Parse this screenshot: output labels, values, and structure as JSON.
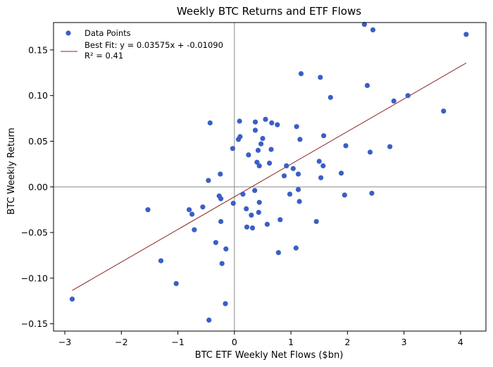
{
  "chart_data": {
    "type": "scatter",
    "title": "Weekly BTC Returns and ETF Flows",
    "xlabel": "BTC ETF Weekly Net Flows ($bn)",
    "ylabel": "BTC Weekly Return",
    "xlim": [
      -3.2,
      4.45
    ],
    "ylim": [
      -0.158,
      0.18
    ],
    "xticks": [
      -3,
      -2,
      -1,
      0,
      1,
      2,
      3,
      4
    ],
    "yticks": [
      -0.15,
      -0.1,
      -0.05,
      0.0,
      0.05,
      0.1,
      0.15
    ],
    "ytick_labels": [
      "−0.15",
      "−0.10",
      "−0.05",
      "0.00",
      "0.05",
      "0.10",
      "0.15"
    ],
    "xtick_labels": [
      "−3",
      "−2",
      "−1",
      "0",
      "1",
      "2",
      "3",
      "4"
    ],
    "grid": false,
    "reference_lines": {
      "x": 0,
      "y": 0
    },
    "legend_position": "top-left",
    "series": [
      {
        "name": "Data Points",
        "kind": "scatter",
        "color": "#3a5fc4",
        "points": [
          [
            -2.87,
            -0.123
          ],
          [
            -1.53,
            -0.025
          ],
          [
            -1.3,
            -0.081
          ],
          [
            -1.03,
            -0.106
          ],
          [
            -0.8,
            -0.025
          ],
          [
            -0.75,
            -0.03
          ],
          [
            -0.71,
            -0.047
          ],
          [
            -0.56,
            -0.022
          ],
          [
            -0.46,
            0.007
          ],
          [
            -0.43,
            0.07
          ],
          [
            -0.45,
            -0.146
          ],
          [
            -0.33,
            -0.061
          ],
          [
            -0.27,
            -0.01
          ],
          [
            -0.24,
            -0.013
          ],
          [
            -0.25,
            0.014
          ],
          [
            -0.24,
            -0.038
          ],
          [
            -0.22,
            -0.084
          ],
          [
            -0.15,
            -0.068
          ],
          [
            -0.16,
            -0.128
          ],
          [
            -0.03,
            0.042
          ],
          [
            -0.02,
            -0.018
          ],
          [
            0.07,
            0.052
          ],
          [
            0.1,
            0.055
          ],
          [
            0.09,
            0.072
          ],
          [
            0.15,
            -0.008
          ],
          [
            0.21,
            -0.024
          ],
          [
            0.22,
            -0.044
          ],
          [
            0.25,
            0.035
          ],
          [
            0.3,
            -0.031
          ],
          [
            0.32,
            -0.045
          ],
          [
            0.36,
            -0.004
          ],
          [
            0.37,
            0.062
          ],
          [
            0.37,
            0.071
          ],
          [
            0.4,
            0.027
          ],
          [
            0.42,
            0.04
          ],
          [
            0.43,
            -0.028
          ],
          [
            0.44,
            -0.017
          ],
          [
            0.44,
            0.023
          ],
          [
            0.47,
            0.047
          ],
          [
            0.5,
            0.053
          ],
          [
            0.55,
            0.074
          ],
          [
            0.58,
            -0.041
          ],
          [
            0.62,
            0.026
          ],
          [
            0.65,
            0.041
          ],
          [
            0.66,
            0.07
          ],
          [
            0.76,
            0.068
          ],
          [
            0.78,
            -0.072
          ],
          [
            0.81,
            -0.036
          ],
          [
            0.88,
            0.012
          ],
          [
            0.92,
            0.023
          ],
          [
            0.98,
            -0.008
          ],
          [
            1.04,
            0.02
          ],
          [
            1.09,
            -0.067
          ],
          [
            1.1,
            0.066
          ],
          [
            1.13,
            -0.003
          ],
          [
            1.13,
            0.014
          ],
          [
            1.15,
            -0.016
          ],
          [
            1.16,
            0.052
          ],
          [
            1.18,
            0.124
          ],
          [
            1.45,
            -0.038
          ],
          [
            1.5,
            0.028
          ],
          [
            1.52,
            0.12
          ],
          [
            1.53,
            0.01
          ],
          [
            1.57,
            0.023
          ],
          [
            1.58,
            0.056
          ],
          [
            1.7,
            0.098
          ],
          [
            1.89,
            0.015
          ],
          [
            1.95,
            -0.009
          ],
          [
            1.97,
            0.045
          ],
          [
            2.3,
            0.178
          ],
          [
            2.35,
            0.111
          ],
          [
            2.4,
            0.038
          ],
          [
            2.43,
            -0.007
          ],
          [
            2.45,
            0.172
          ],
          [
            2.75,
            0.044
          ],
          [
            2.82,
            0.094
          ],
          [
            3.07,
            0.1
          ],
          [
            3.7,
            0.083
          ],
          [
            4.1,
            0.167
          ]
        ]
      },
      {
        "name": "Best Fit: y = 0.03575x + -0.01090",
        "kind": "line",
        "color": "#8b2323",
        "slope": 0.03575,
        "intercept": -0.0109,
        "x_range": [
          -2.87,
          4.1
        ]
      }
    ],
    "legend_entries": [
      "Data Points",
      "Best Fit: y = 0.03575x + -0.01090",
      "R² = 0.41"
    ]
  }
}
